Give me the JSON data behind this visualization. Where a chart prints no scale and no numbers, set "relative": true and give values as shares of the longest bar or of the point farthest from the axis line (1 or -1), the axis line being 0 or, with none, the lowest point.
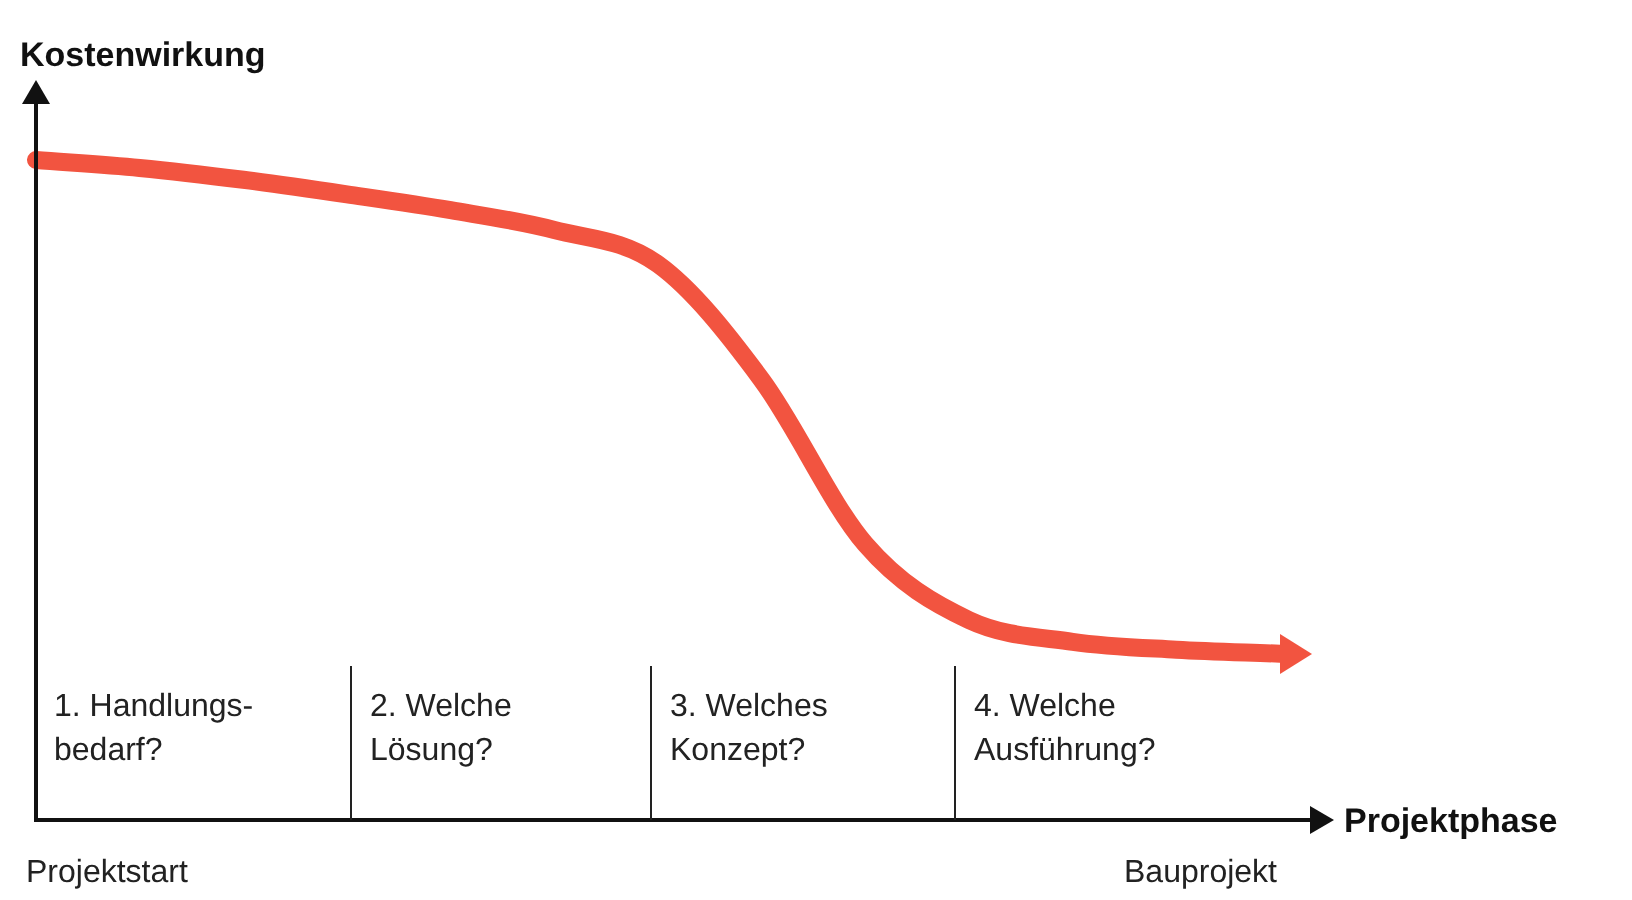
{
  "chart_data": {
    "type": "line",
    "relative": true,
    "xlabel": "Projektphase",
    "ylabel": "Kostenwirkung",
    "categories": [
      null,
      null,
      null,
      null,
      null,
      null,
      null,
      null,
      null,
      null,
      null,
      null,
      null
    ],
    "series": [
      {
        "color": "#f25440",
        "values": [
          1,
          0.988,
          0.97,
          0.948,
          0.924,
          0.894,
          0.842,
          0.667,
          0.418,
          0.303,
          0.27,
          0.258,
          0.252
        ]
      }
    ],
    "annotations": [
      "1. Handlungs-\nbedarf?",
      "2. Welche\nLösung?",
      "3. Welches\nKonzept?",
      "4. Welche\nAusführung?",
      "Projektstart",
      "Bauprojekt"
    ],
    "tick_labels": false,
    "legend": false,
    "marker": "none",
    "line_style": "solid"
  }
}
